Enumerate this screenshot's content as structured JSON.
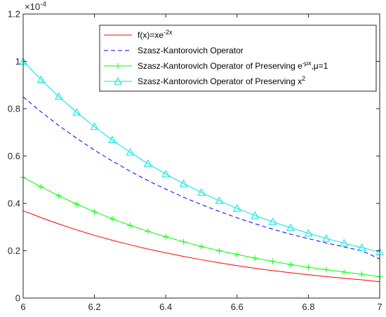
{
  "chart_data": {
    "type": "line",
    "title": "",
    "xlabel": "",
    "ylabel": "",
    "y_multiplier": "×10",
    "y_multiplier_exponent": "-4",
    "xlim": [
      6,
      7
    ],
    "ylim": [
      0,
      1.2
    ],
    "x_ticks": [
      "6",
      "6.2",
      "6.4",
      "6.6",
      "6.8",
      "7"
    ],
    "y_ticks": [
      "0",
      "0.2",
      "0.4",
      "0.6",
      "0.8",
      "1",
      "1.2"
    ],
    "grid": false,
    "legend_position": "top-right",
    "x": [
      6.0,
      6.05,
      6.1,
      6.15,
      6.2,
      6.25,
      6.3,
      6.35,
      6.4,
      6.45,
      6.5,
      6.55,
      6.6,
      6.65,
      6.7,
      6.75,
      6.8,
      6.85,
      6.9,
      6.95,
      7.0
    ],
    "series": [
      {
        "name": "f(x)=xe",
        "name_superscript": "-2x",
        "color": "#ff0000",
        "style": "solid",
        "marker": "none",
        "values": [
          0.369,
          0.34,
          0.313,
          0.288,
          0.265,
          0.244,
          0.225,
          0.207,
          0.191,
          0.176,
          0.162,
          0.149,
          0.137,
          0.126,
          0.116,
          0.107,
          0.0985,
          0.0907,
          0.0836,
          0.0769,
          0.069
        ]
      },
      {
        "name": "Szasz-Kantorovich Operator",
        "color": "#0000ff",
        "style": "dashed",
        "marker": "none",
        "values": [
          0.85,
          0.787,
          0.729,
          0.675,
          0.625,
          0.579,
          0.536,
          0.496,
          0.46,
          0.426,
          0.395,
          0.366,
          0.339,
          0.314,
          0.291,
          0.27,
          0.251,
          0.233,
          0.216,
          0.2,
          0.165
        ]
      },
      {
        "name": "Szasz-Kantorovich Operator of Preserving e",
        "name_superscript": "-μx",
        "name_suffix": ",μ=1",
        "color": "#00ff00",
        "style": "solid",
        "marker": "plus",
        "values": [
          0.51,
          0.47,
          0.432,
          0.397,
          0.365,
          0.335,
          0.307,
          0.282,
          0.259,
          0.238,
          0.218,
          0.2,
          0.184,
          0.169,
          0.155,
          0.142,
          0.13,
          0.12,
          0.11,
          0.101,
          0.09
        ]
      },
      {
        "name": "Szasz-Kantorovich Operator of Preserving x",
        "name_superscript": "2",
        "color": "#00e5e5",
        "style": "solid",
        "marker": "triangle",
        "values": [
          1.0,
          0.923,
          0.851,
          0.785,
          0.724,
          0.668,
          0.616,
          0.568,
          0.524,
          0.483,
          0.446,
          0.411,
          0.379,
          0.349,
          0.322,
          0.297,
          0.274,
          0.252,
          0.232,
          0.213,
          0.195
        ]
      }
    ]
  }
}
